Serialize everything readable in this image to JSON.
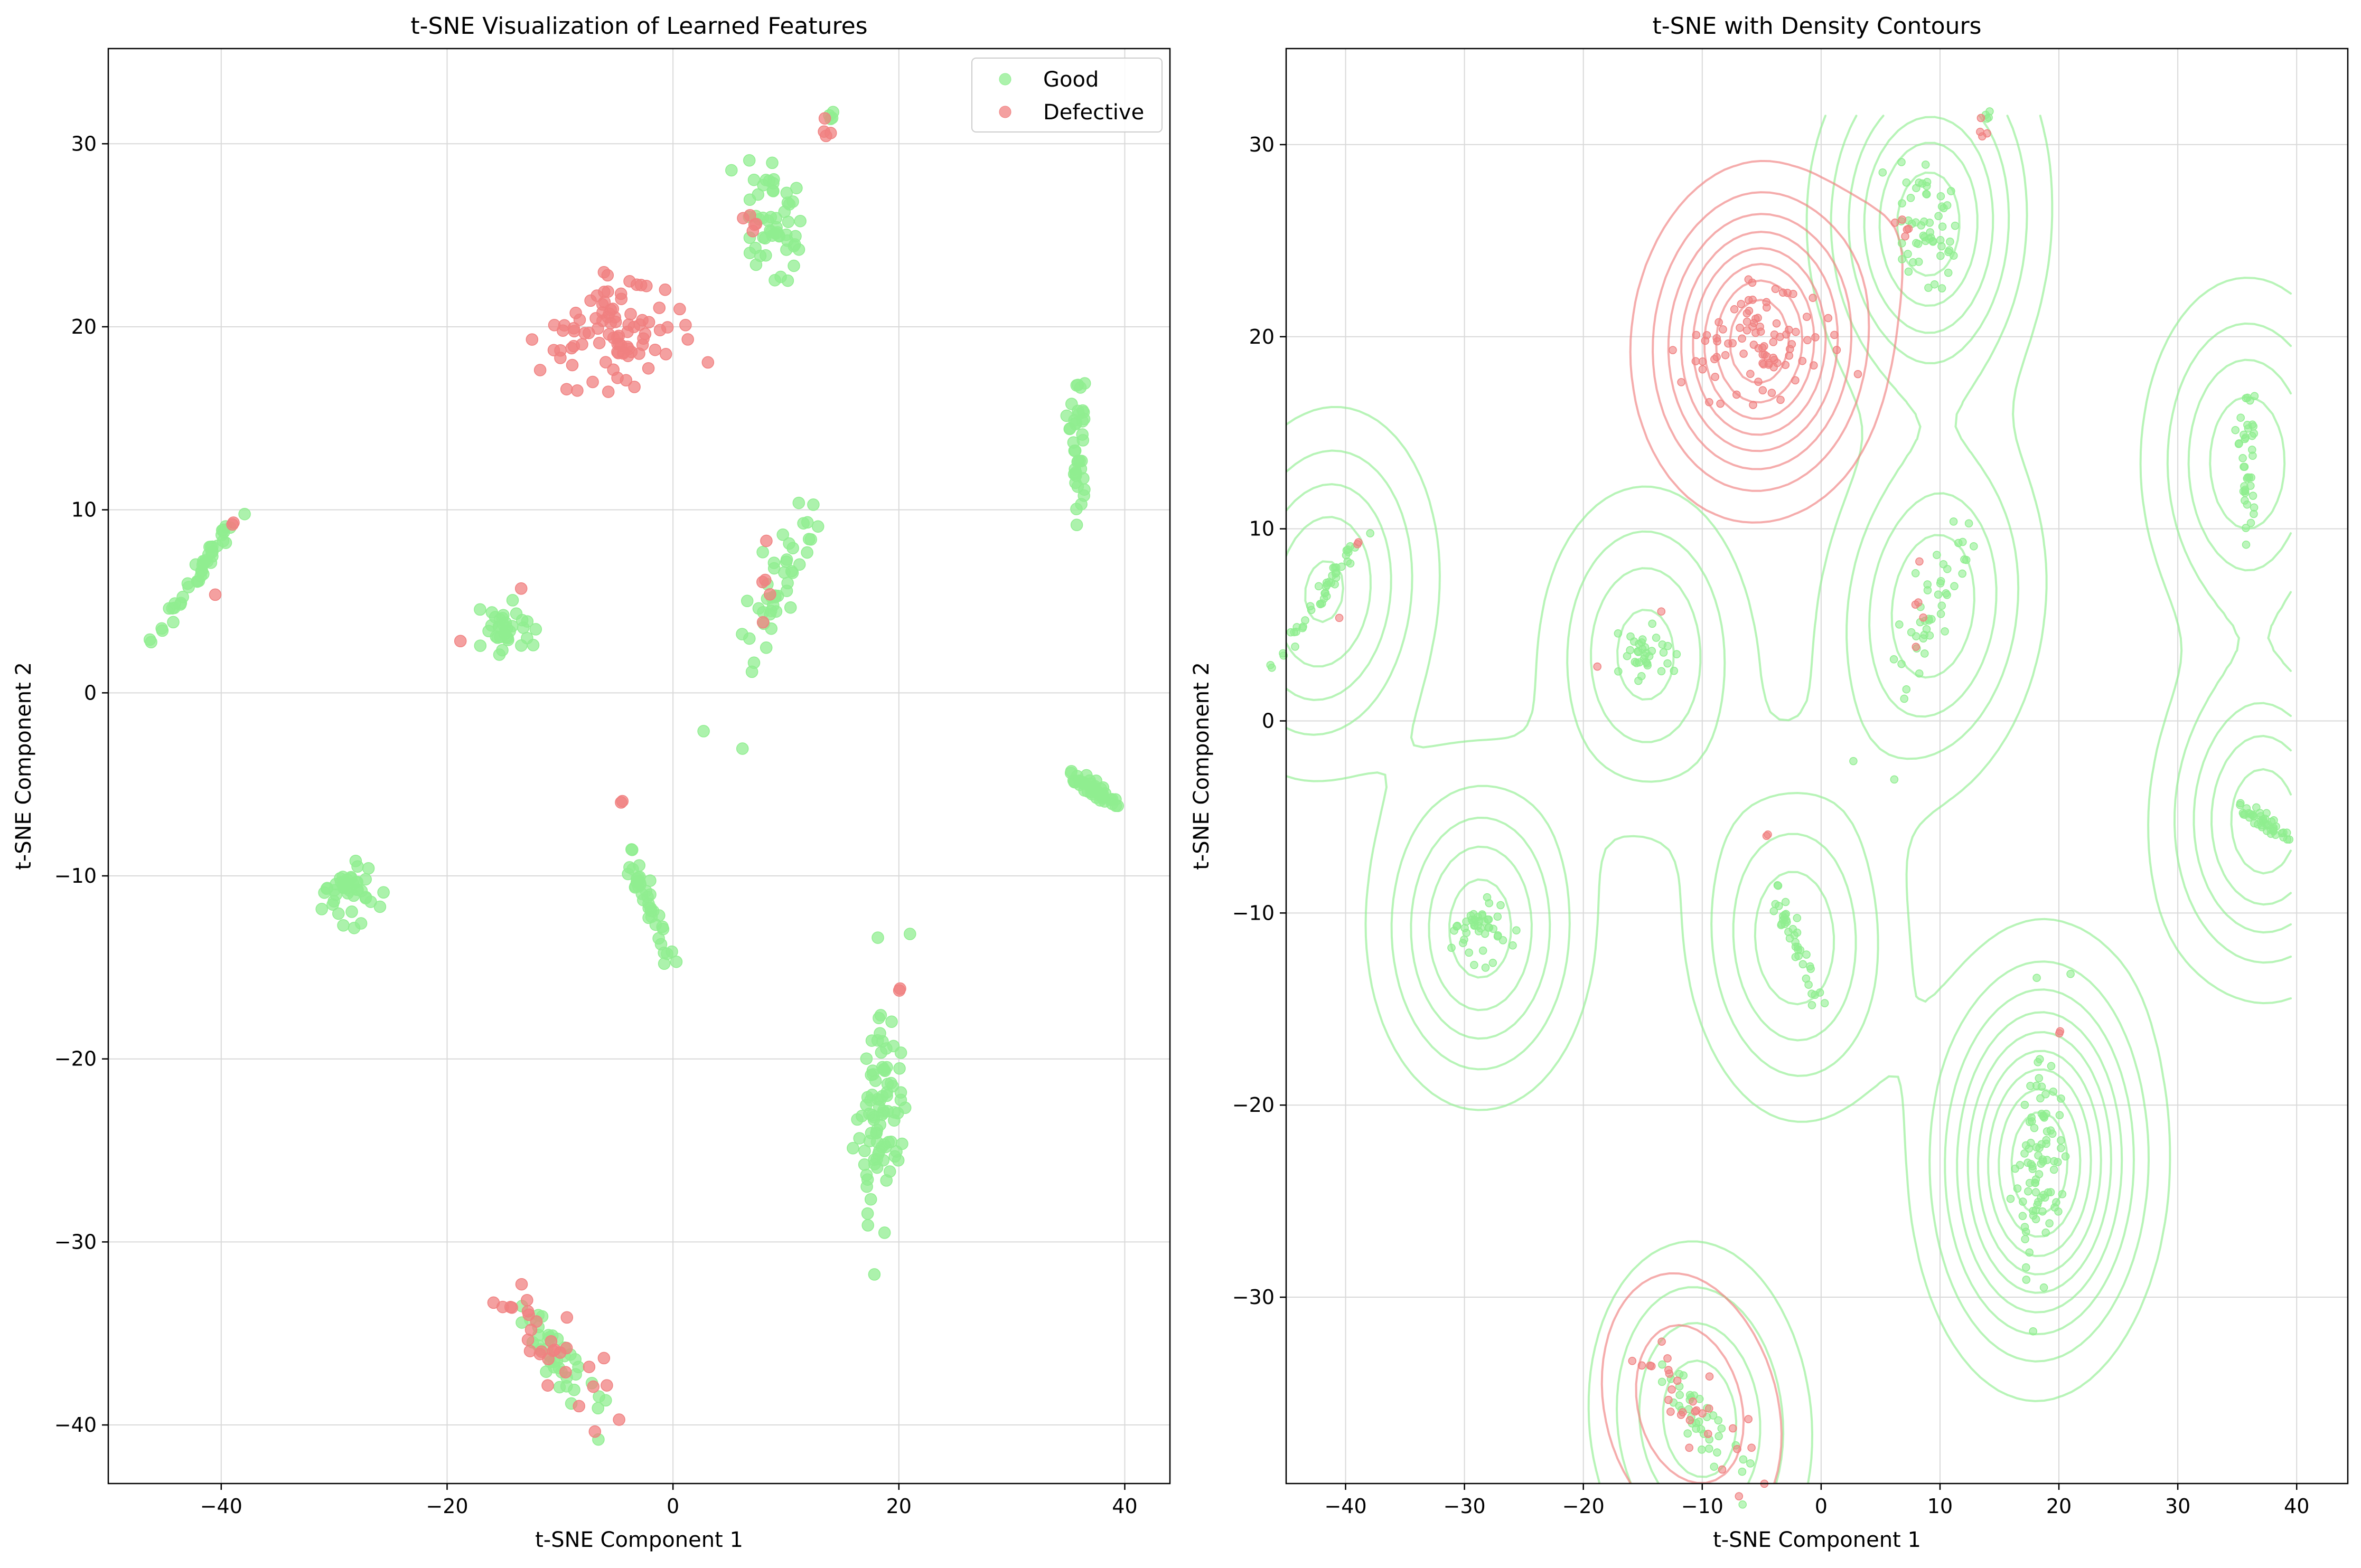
{
  "colors": {
    "good": "#90ee90",
    "defective": "#f08080",
    "grid": "#d9d9d9"
  },
  "legend": {
    "items": [
      "Good",
      "Defective"
    ],
    "placement": "upper-right"
  },
  "chart_data": [
    {
      "type": "scatter",
      "title": "t-SNE Visualization of Learned Features",
      "xlabel": "t-SNE Component 1",
      "ylabel": "t-SNE Component 2",
      "xlim": [
        -50,
        44
      ],
      "ylim": [
        -43.2,
        35.2
      ],
      "xticks": [
        -40,
        -20,
        0,
        20,
        40
      ],
      "yticks": [
        -40,
        -30,
        -20,
        -10,
        0,
        10,
        20,
        30
      ],
      "grid": true,
      "legend": "upper-right",
      "series": [
        {
          "name": "Good",
          "clusters": [
            {
              "cx": -42,
              "cy": 6.5,
              "sx": 2.0,
              "sy": 1.8,
              "n": 45,
              "rho": 0.97
            },
            {
              "cx": -15,
              "cy": 3.3,
              "sx": 1.3,
              "sy": 0.7,
              "n": 35,
              "rho": 0.1
            },
            {
              "cx": -28.5,
              "cy": -11,
              "sx": 1.1,
              "sy": 0.9,
              "n": 45,
              "rho": 0.1
            },
            {
              "cx": -2,
              "cy": -11.8,
              "sx": 1.1,
              "sy": 1.8,
              "n": 40,
              "rho": -0.95
            },
            {
              "cx": 9,
              "cy": 25.5,
              "sx": 1.3,
              "sy": 1.6,
              "n": 55,
              "rho": 0.0
            },
            {
              "cx": 14,
              "cy": 31.2,
              "sx": 0.2,
              "sy": 0.3,
              "n": 4,
              "rho": 0.0
            },
            {
              "cx": 9.5,
              "cy": 5.8,
              "sx": 1.7,
              "sy": 2.8,
              "n": 45,
              "rho": 0.88
            },
            {
              "cx": 35.8,
              "cy": 12.8,
              "sx": 0.3,
              "sy": 2.0,
              "n": 40,
              "rho": 0.0
            },
            {
              "cx": 37,
              "cy": -5.1,
              "sx": 1.2,
              "sy": 0.5,
              "n": 45,
              "rho": -0.9
            },
            {
              "cx": 18.5,
              "cy": -23.5,
              "sx": 1.0,
              "sy": 3.2,
              "n": 90,
              "rho": 0.2
            },
            {
              "cx": -10,
              "cy": -36.5,
              "sx": 2.0,
              "sy": 1.6,
              "n": 40,
              "rho": -0.85
            }
          ]
        },
        {
          "name": "Defective",
          "clusters": [
            {
              "cx": -5.5,
              "cy": 19.8,
              "sx": 3.2,
              "sy": 1.8,
              "n": 90,
              "rho": 0.3
            },
            {
              "cx": 13.5,
              "cy": 30.8,
              "sx": 0.4,
              "sy": 0.4,
              "n": 4,
              "rho": 0.0
            },
            {
              "cx": 7,
              "cy": 25.8,
              "sx": 0.8,
              "sy": 0.5,
              "n": 5,
              "rho": 0.0
            },
            {
              "cx": 7.5,
              "cy": 6.5,
              "sx": 0.8,
              "sy": 1.4,
              "n": 5,
              "rho": 0.0
            },
            {
              "cx": -39,
              "cy": 9.3,
              "sx": 0.1,
              "sy": 0.2,
              "n": 2,
              "rho": 0.0
            },
            {
              "cx": -40.5,
              "cy": 5.4,
              "sx": 0.1,
              "sy": 0.1,
              "n": 1,
              "rho": 0.0
            },
            {
              "cx": -13.5,
              "cy": 5.7,
              "sx": 0.1,
              "sy": 0.1,
              "n": 1,
              "rho": 0.0
            },
            {
              "cx": -19,
              "cy": 2.8,
              "sx": 0.1,
              "sy": 0.1,
              "n": 1,
              "rho": 0.0
            },
            {
              "cx": -4.5,
              "cy": -6.0,
              "sx": 0.1,
              "sy": 0.2,
              "n": 2,
              "rho": 0.0
            },
            {
              "cx": 20,
              "cy": -16.2,
              "sx": 0.1,
              "sy": 0.2,
              "n": 2,
              "rho": 0.0
            },
            {
              "cx": -11,
              "cy": -35.8,
              "sx": 2.2,
              "sy": 1.6,
              "n": 30,
              "rho": -0.85
            }
          ]
        }
      ]
    },
    {
      "type": "scatter",
      "title": "t-SNE with Density Contours",
      "xlabel": "t-SNE Component 1",
      "ylabel": "t-SNE Component 2",
      "xlim": [
        -45,
        44.3
      ],
      "ylim": [
        -39.7,
        35
      ],
      "xticks": [
        -40,
        -30,
        -20,
        -10,
        0,
        10,
        20,
        30,
        40
      ],
      "yticks": [
        -30,
        -20,
        -10,
        0,
        10,
        20,
        30
      ],
      "grid": true,
      "contours": {
        "Good": {
          "bandwidth": 5.0,
          "levels": 9,
          "xrange": [
            -45,
            39.5
          ],
          "yrange": [
            -39.7,
            31.5
          ]
        },
        "Defective": {
          "bandwidth": 4.2,
          "levels": 8,
          "xrange": [
            -45,
            39.5
          ],
          "yrange": [
            -39.7,
            31.5
          ]
        }
      },
      "series_ref": "same as first chart"
    }
  ]
}
